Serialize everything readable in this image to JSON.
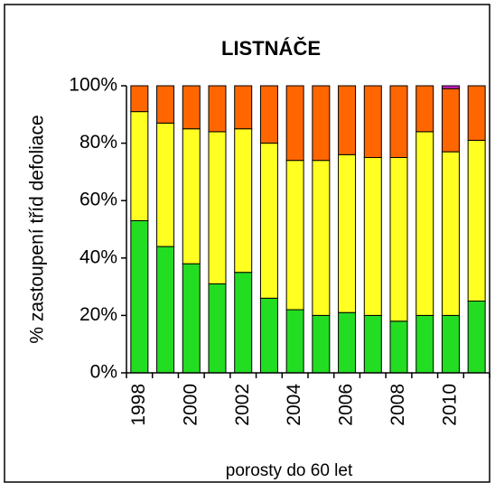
{
  "chart_data": {
    "type": "stacked-bar",
    "title": "LISTNÁČE",
    "y_label": "% zastoupení tříd defoliace",
    "x_label": "porosty do 60 let",
    "categories": [
      "1998",
      null,
      "2000",
      null,
      "2002",
      null,
      "2004",
      null,
      "2006",
      null,
      "2008",
      null,
      "2010",
      null
    ],
    "series": [
      {
        "color": "#22dd22",
        "values": [
          53,
          44,
          38,
          31,
          35,
          26,
          22,
          20,
          21,
          20,
          18,
          20,
          20,
          25
        ]
      },
      {
        "color": "#ffff22",
        "values": [
          38,
          43,
          47,
          53,
          50,
          54,
          52,
          54,
          55,
          55,
          57,
          64,
          57,
          56
        ]
      },
      {
        "color": "#ff6600",
        "values": [
          9,
          13,
          15,
          16,
          15,
          20,
          26,
          26,
          24,
          25,
          25,
          16,
          22,
          19
        ]
      },
      {
        "color": "#cc22cc",
        "values": [
          0,
          0,
          0,
          0,
          0,
          0,
          0,
          0,
          0,
          0,
          0,
          0,
          1,
          0
        ]
      }
    ],
    "ylim": [
      0,
      100
    ],
    "yticks": [
      {
        "value": 0,
        "label": "0%"
      },
      {
        "value": 20,
        "label": "20%"
      },
      {
        "value": 40,
        "label": "40%"
      },
      {
        "value": 60,
        "label": "60%"
      },
      {
        "value": 80,
        "label": "80%"
      },
      {
        "value": 100,
        "label": "100%"
      }
    ]
  }
}
